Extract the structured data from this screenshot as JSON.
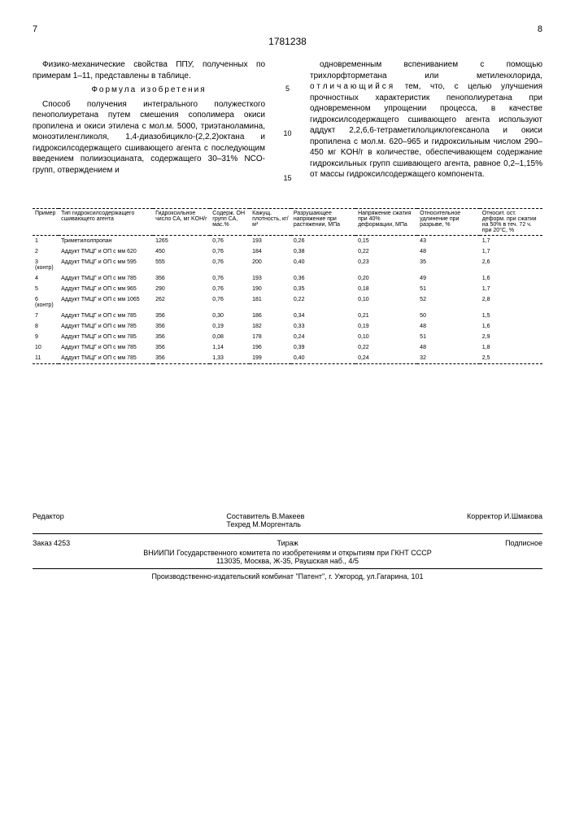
{
  "header": {
    "page_left": "7",
    "page_right": "8",
    "patent_number": "1781238"
  },
  "text": {
    "col1_p1": "Физико-механические свойства ППУ, полученных по примерам 1–11, представлены в таблице.",
    "formula_title": "Формула изобретения",
    "col1_p2": "Способ получения интегрального полужесткого пенополиуретана путем смешения сополимера окиси пропилена и окиси этилена с мол.м. 5000, триэтаноламина, моноэтиленгликоля, 1,4-диазобицикло-(2,2,2)октана и гидроксилсодержащего сшивающего агента с последующим введением полиизоцианата, содержащего 30–31% NCO-групп, отверждением и",
    "col2_p1": "одновременным вспениванием с помощью трихлорфторметана или метиленхлорида,",
    "col2_spaced": "отличающийся",
    "col2_p1b": " тем, что, с целью улучшения прочностных характеристик пенополиуретана при одновременном упрощении процесса, в качестве гидроксилсодержащего сшивающего агента используют аддукт 2,2,6,6-тетраметилолциклогексанола и окиси пропилена с мол.м. 620–965 и гидроксильным числом 290–450 мг KOH/г в количестве, обеспечивающем содержание гидроксильных групп сшивающего агента, равное 0,2–1,15% от массы гидроксилсодержащего компонента."
  },
  "line_nums": [
    "5",
    "10",
    "15"
  ],
  "table": {
    "headers": [
      "Пример",
      "Тип гидроксилсодержащего сшивающего агента",
      "Гидроксильное число СА, мг KOH/г",
      "Содерж. OH групп СА, мас.%",
      "Кажущ. плотность, кг/м³",
      "Разрушающее напряжение при растяжении, МПа",
      "Напряжение сжатия при 40% деформации, МПа",
      "Относительное удлинение при разрыве, %",
      "Относит. ост. деформ. при сжатии на 50% в теч. 72 ч. при 20°C, %"
    ],
    "rows": [
      [
        "1",
        "Триметилолпропан",
        "1265",
        "0,76",
        "193",
        "0,26",
        "0,15",
        "43",
        "1,7"
      ],
      [
        "2",
        "Аддукт ТМЦГ и ОП с мм 620",
        "450",
        "0,76",
        "184",
        "0,38",
        "0,22",
        "48",
        "1,7"
      ],
      [
        "3 (контр)",
        "Аддукт ТМЦГ и ОП с мм 595",
        "555",
        "0,76",
        "200",
        "0,40",
        "0,23",
        "35",
        "2,6"
      ],
      [
        "4",
        "Аддукт ТМЦГ и ОП с мм 785",
        "356",
        "0,76",
        "193",
        "0,36",
        "0,20",
        "49",
        "1,6"
      ],
      [
        "5",
        "Аддукт ТМЦГ и ОП с мм 965",
        "290",
        "0,76",
        "190",
        "0,35",
        "0,18",
        "51",
        "1,7"
      ],
      [
        "6 (контр)",
        "Аддукт ТМЦГ и ОП с мм 1065",
        "262",
        "0,76",
        "181",
        "0,22",
        "0,10",
        "52",
        "2,8"
      ],
      [
        "7",
        "Аддукт ТМЦГ и ОП с мм 785",
        "356",
        "0,30",
        "186",
        "0,34",
        "0,21",
        "50",
        "1,5"
      ],
      [
        "8",
        "Аддукт ТМЦГ и ОП с мм 785",
        "356",
        "0,19",
        "182",
        "0,33",
        "0,19",
        "48",
        "1,6"
      ],
      [
        "9",
        "Аддукт ТМЦГ и ОП с мм 785",
        "356",
        "0,08",
        "178",
        "0,24",
        "0,10",
        "51",
        "2,9"
      ],
      [
        "10",
        "Аддукт ТМЦГ и ОП с мм 785",
        "356",
        "1,14",
        "196",
        "0,39",
        "0,22",
        "48",
        "1,8"
      ],
      [
        "11",
        "Аддукт ТМЦГ и ОП с мм 785",
        "356",
        "1,33",
        "199",
        "0,40",
        "0,24",
        "32",
        "2,5"
      ]
    ]
  },
  "footer": {
    "editor_label": "Редактор",
    "compiler": "Составитель В.Макеев",
    "tehred": "Техред М.Моргенталь",
    "corrector": "Корректор И.Шмакова",
    "order": "Заказ 4253",
    "tirazh": "Тираж",
    "podpisnoe": "Подписное",
    "org": "ВНИИПИ Государственного комитета по изобретениям и открытиям при ГКНТ СССР",
    "address": "113035, Москва, Ж-35, Раушская наб., 4/5",
    "producer": "Производственно-издательский комбинат \"Патент\", г. Ужгород, ул.Гагарина, 101"
  }
}
